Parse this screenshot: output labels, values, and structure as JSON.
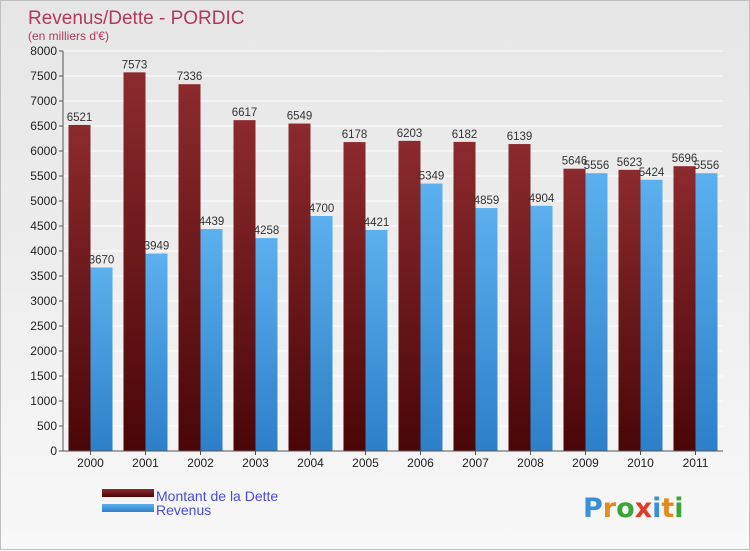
{
  "chart_data": {
    "type": "bar",
    "title": "Revenus/Dette - PORDIC",
    "subtitle": "(en milliers d'€)",
    "categories": [
      "2000",
      "2001",
      "2002",
      "2003",
      "2004",
      "2005",
      "2006",
      "2007",
      "2008",
      "2009",
      "2010",
      "2011"
    ],
    "series": [
      {
        "name": "Montant de la Dette",
        "color": "#7a1e22",
        "values": [
          6521,
          7573,
          7336,
          6617,
          6549,
          6178,
          6203,
          6182,
          6139,
          5646,
          5623,
          5696
        ]
      },
      {
        "name": "Revenus",
        "color": "#4da3e3",
        "values": [
          3670,
          3949,
          4439,
          4258,
          4700,
          4421,
          5349,
          4859,
          4904,
          5556,
          5424,
          5556
        ]
      }
    ],
    "ylim": [
      0,
      8000
    ],
    "yticks": [
      0,
      500,
      1000,
      1500,
      2000,
      2500,
      3000,
      3500,
      4000,
      4500,
      5000,
      5500,
      6000,
      6500,
      7000,
      7500,
      8000
    ],
    "grid": true,
    "legend_position": "bottom-left"
  },
  "logo": {
    "text": "Proxiti",
    "letter_colors": [
      "#3a8fd8",
      "#e58a1f",
      "#3aa63a",
      "#e03a2a",
      "#3a8fd8",
      "#e58a1f",
      "#3aa63a"
    ]
  }
}
